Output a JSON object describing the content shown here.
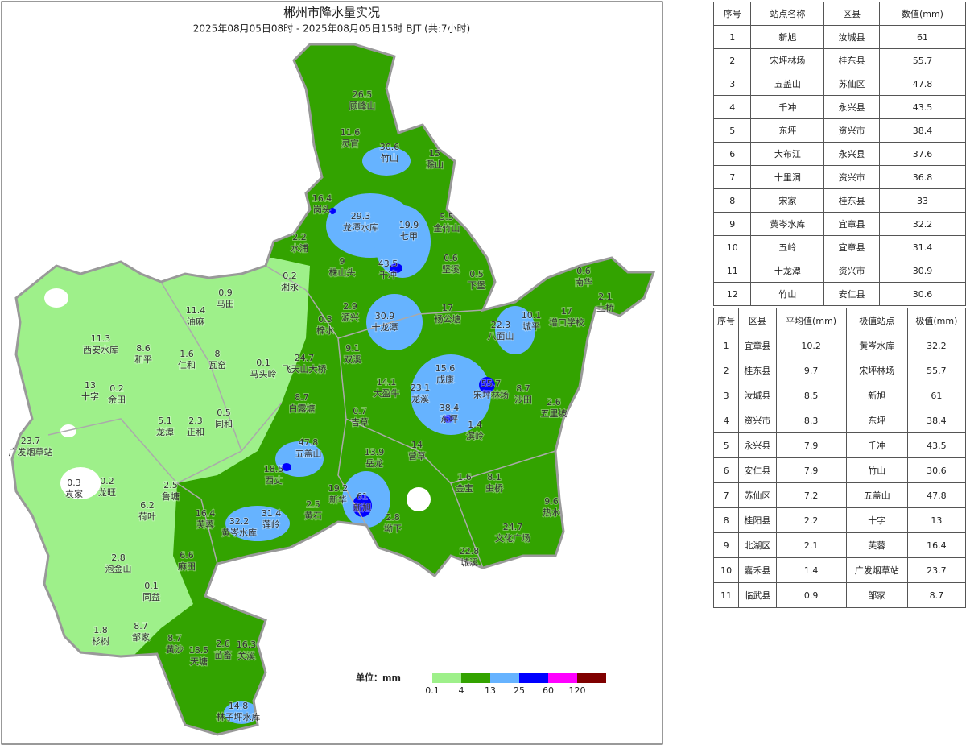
{
  "title": "郴州市降水量实况",
  "subtitle": "2025年08月05日08时 - 2025年08月05日15时 BJT (共:7小时)",
  "stations": [
    {
      "value": 26.5,
      "name": "顾峰山"
    },
    {
      "value": 11.6,
      "name": "灵官"
    },
    {
      "value": 30.6,
      "name": "竹山"
    },
    {
      "value": 15,
      "name": "滁山"
    },
    {
      "value": 16.4,
      "name": "岗头"
    },
    {
      "value": 29.3,
      "name": "龙潭水库"
    },
    {
      "value": 19.9,
      "name": "七甲"
    },
    {
      "value": 5.5,
      "name": "金竹山"
    },
    {
      "value": 2.2,
      "name": "水浦"
    },
    {
      "value": 9,
      "name": "株山头"
    },
    {
      "value": 43.5,
      "name": "千冲"
    },
    {
      "value": 0.6,
      "name": "坚溪"
    },
    {
      "value": 0.5,
      "name": "下堡"
    },
    {
      "value": 0.2,
      "name": "湘永"
    },
    {
      "value": 0.9,
      "name": "马田"
    },
    {
      "value": 11.4,
      "name": "油麻"
    },
    {
      "value": 2.9,
      "name": "源兴"
    },
    {
      "value": 30.9,
      "name": "十龙潭"
    },
    {
      "value": 17,
      "name": "杨公塘"
    },
    {
      "value": 0.6,
      "name": "南华"
    },
    {
      "value": 2.1,
      "name": "土桥"
    },
    {
      "value": 10.1,
      "name": "城平"
    },
    {
      "value": 17,
      "name": "增口学校"
    },
    {
      "value": 22.3,
      "name": "八面山"
    },
    {
      "value": 0.3,
      "name": "梓水"
    },
    {
      "value": 11.3,
      "name": "西安水库"
    },
    {
      "value": 8.6,
      "name": "和平"
    },
    {
      "value": 1.6,
      "name": "仁和"
    },
    {
      "value": 8,
      "name": "瓦窑"
    },
    {
      "value": 0.1,
      "name": "马头岭"
    },
    {
      "value": 24.7,
      "name": "飞天山大桥"
    },
    {
      "value": 9.1,
      "name": "双溪"
    },
    {
      "value": 15.6,
      "name": "成康"
    },
    {
      "value": 55.7,
      "name": "宋坪林场"
    },
    {
      "value": 8.7,
      "name": "沙田"
    },
    {
      "value": 14.1,
      "name": "大盈牛"
    },
    {
      "value": 23.1,
      "name": "龙溪"
    },
    {
      "value": 13,
      "name": "十字"
    },
    {
      "value": 0.2,
      "name": "余田"
    },
    {
      "value": 8.7,
      "name": "白露塘"
    },
    {
      "value": 0.7,
      "name": "吉草"
    },
    {
      "value": 38.4,
      "name": "东坪"
    },
    {
      "value": 2.6,
      "name": "五里坡"
    },
    {
      "value": 5.1,
      "name": "龙潭"
    },
    {
      "value": 2.3,
      "name": "正和"
    },
    {
      "value": 0.5,
      "name": "同和"
    },
    {
      "value": 1.4,
      "name": "滨岭"
    },
    {
      "value": 47.8,
      "name": "五盖山"
    },
    {
      "value": 13.9,
      "name": "岳龙"
    },
    {
      "value": 14,
      "name": "营草"
    },
    {
      "value": 23.7,
      "name": "广发烟草站"
    },
    {
      "value": 18.5,
      "name": "西丈"
    },
    {
      "value": 0.3,
      "name": "袁家"
    },
    {
      "value": 0.2,
      "name": "龙旺"
    },
    {
      "value": 2.5,
      "name": "鲁塘"
    },
    {
      "value": 1.6,
      "name": "金宝"
    },
    {
      "value": 8.1,
      "name": "虫桥"
    },
    {
      "value": 19.2,
      "name": "新华"
    },
    {
      "value": 61,
      "name": "新旭"
    },
    {
      "value": 16.4,
      "name": "芙蓉"
    },
    {
      "value": 32.2,
      "name": "黄岑水库"
    },
    {
      "value": 31.4,
      "name": "莲岭"
    },
    {
      "value": 2.5,
      "name": "黄石"
    },
    {
      "value": 2.8,
      "name": "坳下"
    },
    {
      "value": 6.2,
      "name": "荷叶"
    },
    {
      "value": 9.6,
      "name": "热水"
    },
    {
      "value": 24.7,
      "name": "文化广场"
    },
    {
      "value": 22.8,
      "name": "城溪"
    },
    {
      "value": 6.6,
      "name": "麻田"
    },
    {
      "value": 2.8,
      "name": "泡金山"
    },
    {
      "value": 0.1,
      "name": "同益"
    },
    {
      "value": 1.8,
      "name": "杉树"
    },
    {
      "value": 8.7,
      "name": "邹家"
    },
    {
      "value": 8.7,
      "name": "黄沙"
    },
    {
      "value": 18.5,
      "name": "天塘"
    },
    {
      "value": 2.6,
      "name": "苗畜"
    },
    {
      "value": 16.3,
      "name": "关溪"
    },
    {
      "value": 14.8,
      "name": "林子坪水库"
    }
  ],
  "legend": {
    "unit_label": "单位：mm",
    "colors": [
      "#9ef08a",
      "#33a300",
      "#66b3ff",
      "#0000ff",
      "#ff00ff",
      "#7f0000"
    ],
    "breaks": [
      0.1,
      4,
      13,
      25,
      60,
      120
    ]
  },
  "station_table": {
    "header": [
      "序号",
      "站点名称",
      "区县",
      "数值(mm)"
    ],
    "rows": [
      [
        "1",
        "新旭",
        "汝城县",
        "61"
      ],
      [
        "2",
        "宋坪林场",
        "桂东县",
        "55.7"
      ],
      [
        "3",
        "五盖山",
        "苏仙区",
        "47.8"
      ],
      [
        "4",
        "千冲",
        "永兴县",
        "43.5"
      ],
      [
        "5",
        "东坪",
        "资兴市",
        "38.4"
      ],
      [
        "6",
        "大布江",
        "永兴县",
        "37.6"
      ],
      [
        "7",
        "十里洞",
        "资兴市",
        "36.8"
      ],
      [
        "8",
        "宋家",
        "桂东县",
        "33"
      ],
      [
        "9",
        "黄岑水库",
        "宜章县",
        "32.2"
      ],
      [
        "10",
        "五岭",
        "宜章县",
        "31.4"
      ],
      [
        "11",
        "十龙潭",
        "资兴市",
        "30.9"
      ],
      [
        "12",
        "竹山",
        "安仁县",
        "30.6"
      ]
    ]
  },
  "county_table": {
    "header": [
      "序号",
      "区县",
      "平均值(mm)",
      "极值站点",
      "极值(mm)"
    ],
    "rows": [
      [
        "1",
        "宜章县",
        "10.2",
        "黄岑水库",
        "32.2"
      ],
      [
        "2",
        "桂东县",
        "9.7",
        "宋坪林场",
        "55.7"
      ],
      [
        "3",
        "汝城县",
        "8.5",
        "新旭",
        "61"
      ],
      [
        "4",
        "资兴市",
        "8.3",
        "东坪",
        "38.4"
      ],
      [
        "5",
        "永兴县",
        "7.9",
        "千冲",
        "43.5"
      ],
      [
        "6",
        "安仁县",
        "7.9",
        "竹山",
        "30.6"
      ],
      [
        "7",
        "苏仙区",
        "7.2",
        "五盖山",
        "47.8"
      ],
      [
        "8",
        "桂阳县",
        "2.2",
        "十字",
        "13"
      ],
      [
        "9",
        "北湖区",
        "2.1",
        "芙蓉",
        "16.4"
      ],
      [
        "10",
        "嘉禾县",
        "1.4",
        "广发烟草站",
        "23.7"
      ],
      [
        "11",
        "临武县",
        "0.9",
        "邹家",
        "8.7"
      ]
    ]
  }
}
